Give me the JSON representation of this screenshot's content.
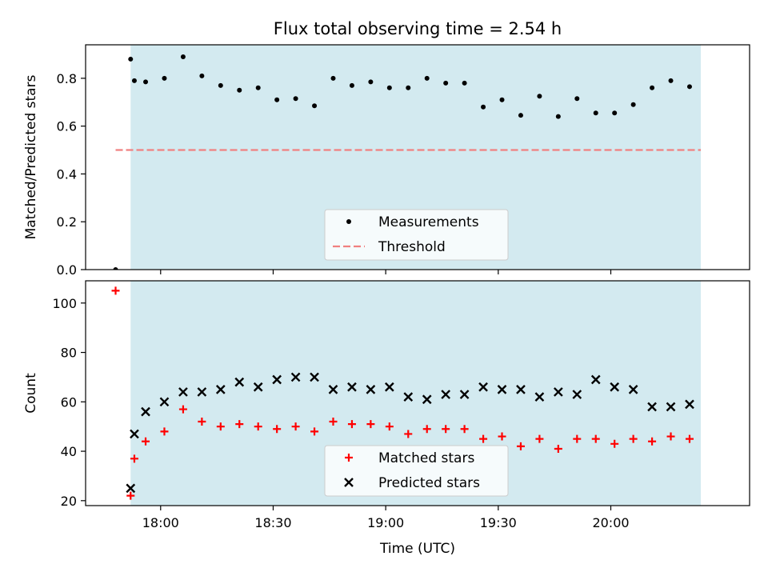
{
  "chart_data": [
    {
      "type": "scatter",
      "title": "Flux total observing time = 2.54 h",
      "xlabel": "",
      "ylabel": "Matched/Predicted stars",
      "xlim": [
        "17:40",
        "20:37"
      ],
      "ylim": [
        0,
        0.94
      ],
      "yticks": [
        "0.0",
        "0.2",
        "0.4",
        "0.6",
        "0.8"
      ],
      "ytick_values": [
        0,
        0.2,
        0.4,
        0.6,
        0.8
      ],
      "grid": false,
      "shaded_span": {
        "start": "17:52",
        "end": "20:24",
        "color": "#d3eaf0"
      },
      "legend": {
        "placement": "lower center",
        "entries": [
          "Measurements",
          "Threshold"
        ]
      },
      "threshold": {
        "name": "Threshold",
        "value": 0.5,
        "x_start": "17:48",
        "x_end": "20:24",
        "color": "#f08080"
      },
      "series": [
        {
          "name": "Measurements",
          "color": "#000000",
          "x": [
            "17:48",
            "17:52",
            "17:53",
            "17:56",
            "18:01",
            "18:06",
            "18:11",
            "18:16",
            "18:21",
            "18:26",
            "18:31",
            "18:36",
            "18:41",
            "18:46",
            "18:51",
            "18:56",
            "19:01",
            "19:06",
            "19:11",
            "19:16",
            "19:21",
            "19:26",
            "19:31",
            "19:36",
            "19:41",
            "19:46",
            "19:51",
            "19:56",
            "20:01",
            "20:06",
            "20:11",
            "20:16",
            "20:21"
          ],
          "y": [
            0.0,
            0.88,
            0.79,
            0.785,
            0.8,
            0.89,
            0.81,
            0.77,
            0.75,
            0.76,
            0.71,
            0.715,
            0.685,
            0.8,
            0.77,
            0.785,
            0.76,
            0.76,
            0.8,
            0.78,
            0.78,
            0.68,
            0.71,
            0.645,
            0.725,
            0.64,
            0.715,
            0.655,
            0.655,
            0.69,
            0.76,
            0.79,
            0.765
          ]
        }
      ]
    },
    {
      "type": "scatter",
      "title": "",
      "xlabel": "Time (UTC)",
      "ylabel": "Count",
      "xlim": [
        "17:40",
        "20:37"
      ],
      "ylim": [
        18,
        109
      ],
      "xticks": [
        "18:00",
        "18:30",
        "19:00",
        "19:30",
        "20:00"
      ],
      "yticks": [
        "20",
        "40",
        "60",
        "80",
        "100"
      ],
      "ytick_values": [
        20,
        40,
        60,
        80,
        100
      ],
      "grid": false,
      "shaded_span": {
        "start": "17:52",
        "end": "20:24",
        "color": "#d3eaf0"
      },
      "legend": {
        "placement": "lower center",
        "entries": [
          "Matched stars",
          "Predicted stars"
        ]
      },
      "series": [
        {
          "name": "Matched stars",
          "marker": "+",
          "color": "#ff0000",
          "x": [
            "17:48",
            "17:52",
            "17:53",
            "17:56",
            "18:01",
            "18:06",
            "18:11",
            "18:16",
            "18:21",
            "18:26",
            "18:31",
            "18:36",
            "18:41",
            "18:46",
            "18:51",
            "18:56",
            "19:01",
            "19:06",
            "19:11",
            "19:16",
            "19:21",
            "19:26",
            "19:31",
            "19:36",
            "19:41",
            "19:46",
            "19:51",
            "19:56",
            "20:01",
            "20:06",
            "20:11",
            "20:16",
            "20:21"
          ],
          "y": [
            105,
            22,
            37,
            44,
            48,
            57,
            52,
            50,
            51,
            50,
            49,
            50,
            48,
            52,
            51,
            51,
            50,
            47,
            49,
            49,
            49,
            45,
            46,
            42,
            45,
            41,
            45,
            45,
            43,
            45,
            44,
            46,
            45
          ]
        },
        {
          "name": "Predicted stars",
          "marker": "x",
          "color": "#000000",
          "x": [
            "17:52",
            "17:53",
            "17:56",
            "18:01",
            "18:06",
            "18:11",
            "18:16",
            "18:21",
            "18:26",
            "18:31",
            "18:36",
            "18:41",
            "18:46",
            "18:51",
            "18:56",
            "19:01",
            "19:06",
            "19:11",
            "19:16",
            "19:21",
            "19:26",
            "19:31",
            "19:36",
            "19:41",
            "19:46",
            "19:51",
            "19:56",
            "20:01",
            "20:06",
            "20:11",
            "20:16",
            "20:21"
          ],
          "y": [
            25,
            47,
            56,
            60,
            64,
            64,
            65,
            68,
            66,
            69,
            70,
            70,
            65,
            66,
            65,
            66,
            62,
            61,
            63,
            63,
            66,
            65,
            65,
            62,
            64,
            63,
            69,
            66,
            65,
            58,
            58,
            59
          ]
        }
      ]
    }
  ]
}
